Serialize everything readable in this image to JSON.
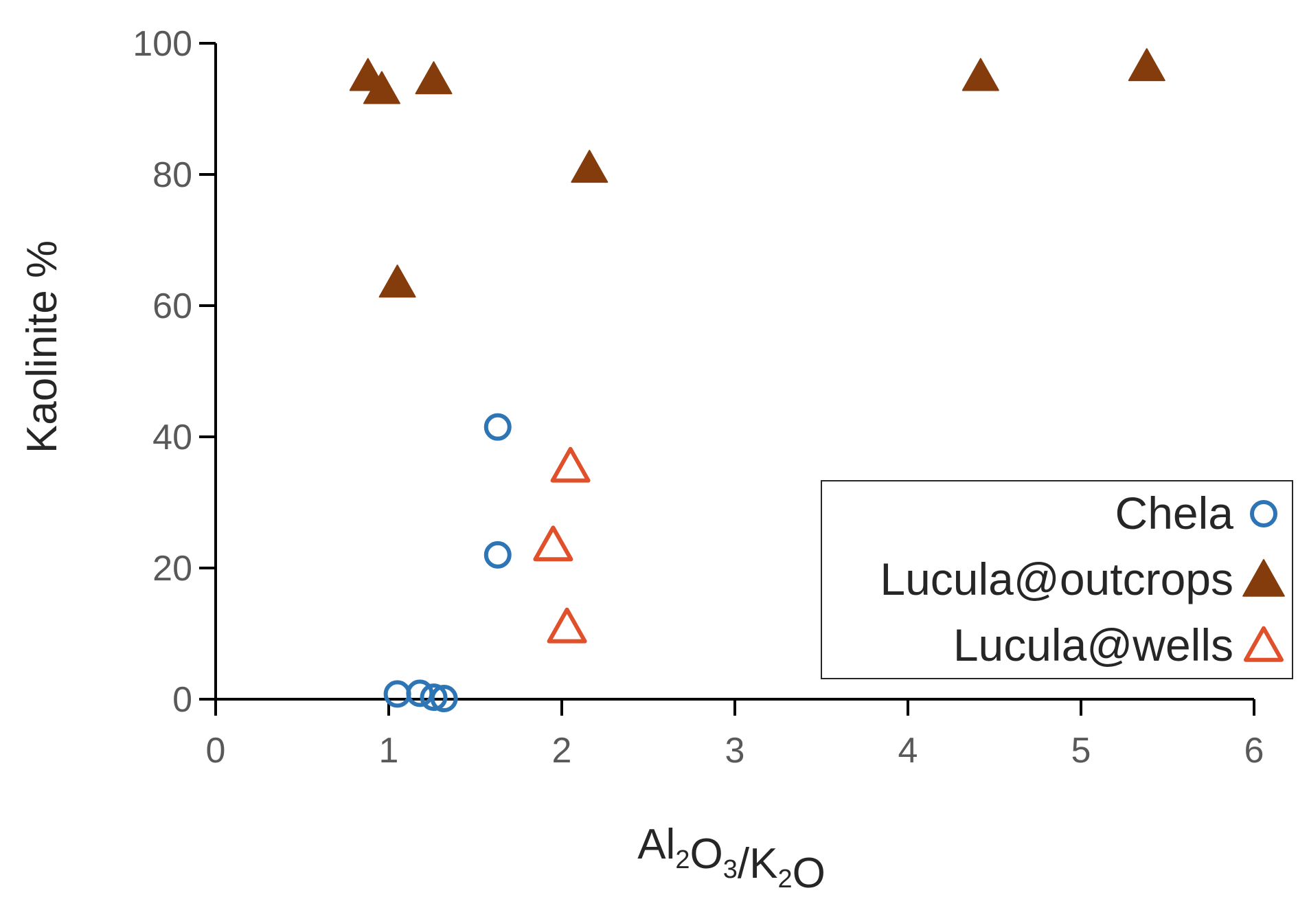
{
  "chart_data": {
    "type": "scatter",
    "xlabel": {
      "parts": [
        {
          "text": "Al",
          "sub": false
        },
        {
          "text": "2",
          "sub": true
        },
        {
          "text": "O",
          "sub": false
        },
        {
          "text": "3",
          "sub": true
        },
        {
          "text": "/K",
          "sub": false
        },
        {
          "text": "2",
          "sub": true
        },
        {
          "text": "O",
          "sub": false
        }
      ]
    },
    "ylabel": "Kaolinite %",
    "xlim": [
      0,
      6
    ],
    "ylim": [
      0,
      100
    ],
    "x_ticks": [
      0,
      1,
      2,
      3,
      4,
      5,
      6
    ],
    "y_ticks": [
      0,
      20,
      40,
      60,
      80,
      100
    ],
    "grid": false,
    "legend_position": "bottom-right",
    "series": [
      {
        "name": "Chela",
        "marker": "circle-open",
        "color": "#2E75B6",
        "points": [
          {
            "x": 1.05,
            "y": 0.8
          },
          {
            "x": 1.18,
            "y": 0.9
          },
          {
            "x": 1.26,
            "y": 0.3
          },
          {
            "x": 1.32,
            "y": 0.1
          },
          {
            "x": 1.63,
            "y": 22
          },
          {
            "x": 1.63,
            "y": 41.5
          }
        ]
      },
      {
        "name": "Lucula@outcrops",
        "marker": "triangle-filled",
        "color": "#843C0C",
        "points": [
          {
            "x": 0.88,
            "y": 95
          },
          {
            "x": 0.96,
            "y": 93
          },
          {
            "x": 1.26,
            "y": 94.5
          },
          {
            "x": 2.16,
            "y": 81
          },
          {
            "x": 1.05,
            "y": 63.5
          },
          {
            "x": 4.42,
            "y": 95
          },
          {
            "x": 5.38,
            "y": 96.5
          }
        ]
      },
      {
        "name": "Lucula@wells",
        "marker": "triangle-open",
        "color": "#E0502B",
        "points": [
          {
            "x": 2.05,
            "y": 35.5
          },
          {
            "x": 1.95,
            "y": 23.5
          },
          {
            "x": 2.03,
            "y": 11
          }
        ]
      }
    ]
  }
}
